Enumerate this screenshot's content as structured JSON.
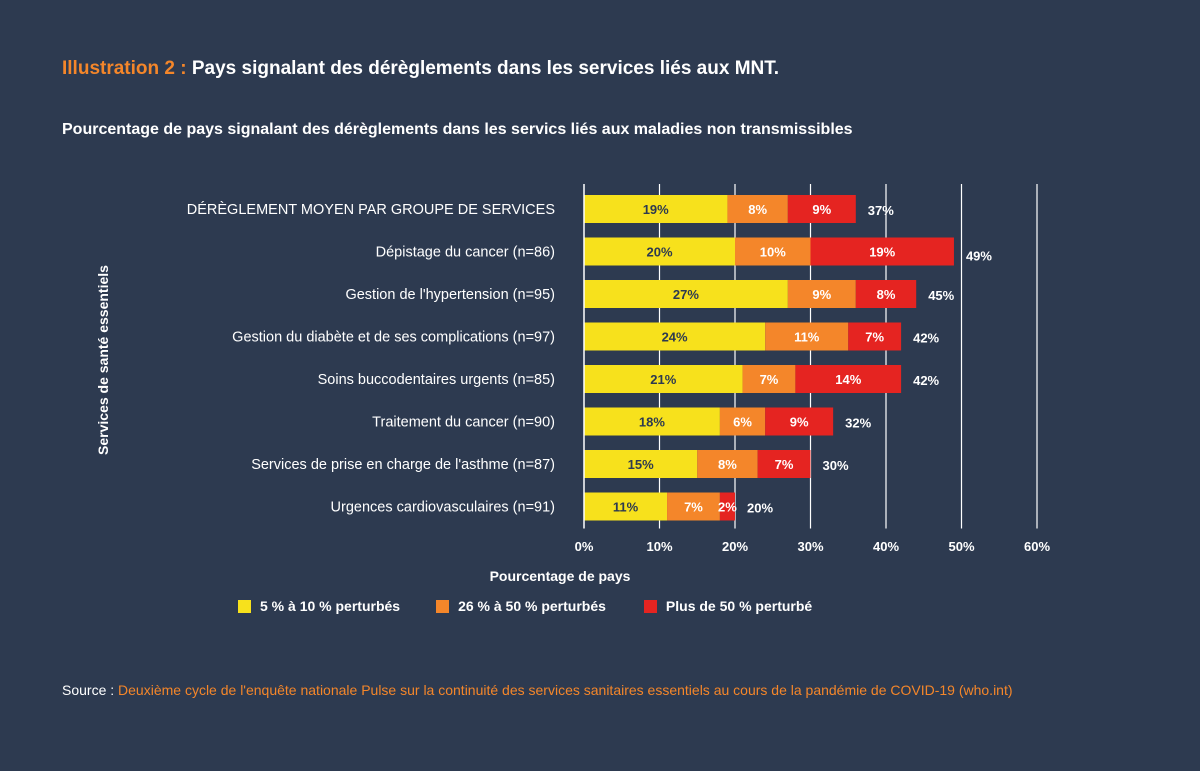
{
  "heading": {
    "lead": "Illustration 2 :",
    "rest": "Pays signalant des dérèglements dans les services liés aux MNT."
  },
  "chart_data": {
    "type": "bar",
    "orientation": "horizontal",
    "stacked": true,
    "title": "Pourcentage de pays signalant des dérèglements dans les servics liés aux maladies non transmissibles",
    "xlabel": "Pourcentage de pays",
    "ylabel": "Services de santé essentiels",
    "xlim": [
      0,
      60
    ],
    "xticks": [
      "0%",
      "10%",
      "20%",
      "30%",
      "40%",
      "50%",
      "60%"
    ],
    "grid": true,
    "legend_position": "bottom",
    "categories": [
      "DÉRÈGLEMENT MOYEN PAR GROUPE DE SERVICES",
      "Dépistage du cancer (n=86)",
      "Gestion de l'hypertension (n=95)",
      "Gestion du diabète et de ses complications (n=97)",
      "Soins buccodentaires urgents (n=85)",
      "Traitement du cancer (n=90)",
      "Services de prise en charge de l'asthme (n=87)",
      "Urgences cardiovasculaires (n=91)"
    ],
    "series": [
      {
        "name": "5 % à 10 % perturbés",
        "color": "#f7e11c",
        "label_color": "#2d3a50",
        "values": [
          19,
          20,
          27,
          24,
          21,
          18,
          15,
          11
        ]
      },
      {
        "name": "26 % à 50 % perturbés",
        "color": "#f4862a",
        "label_color": "#ffffff",
        "values": [
          8,
          10,
          9,
          11,
          7,
          6,
          8,
          7
        ]
      },
      {
        "name": "Plus de 50 % perturbé",
        "color": "#e52421",
        "label_color": "#ffffff",
        "values": [
          9,
          19,
          8,
          7,
          14,
          9,
          7,
          2
        ]
      }
    ],
    "totals": [
      37,
      49,
      45,
      42,
      42,
      32,
      30,
      20
    ]
  },
  "source": {
    "label": "Source :",
    "text": "Deuxième cycle de l'enquête nationale Pulse sur la continuité des services sanitaires essentiels au cours de la pandémie de COVID-19 (who.int)"
  }
}
